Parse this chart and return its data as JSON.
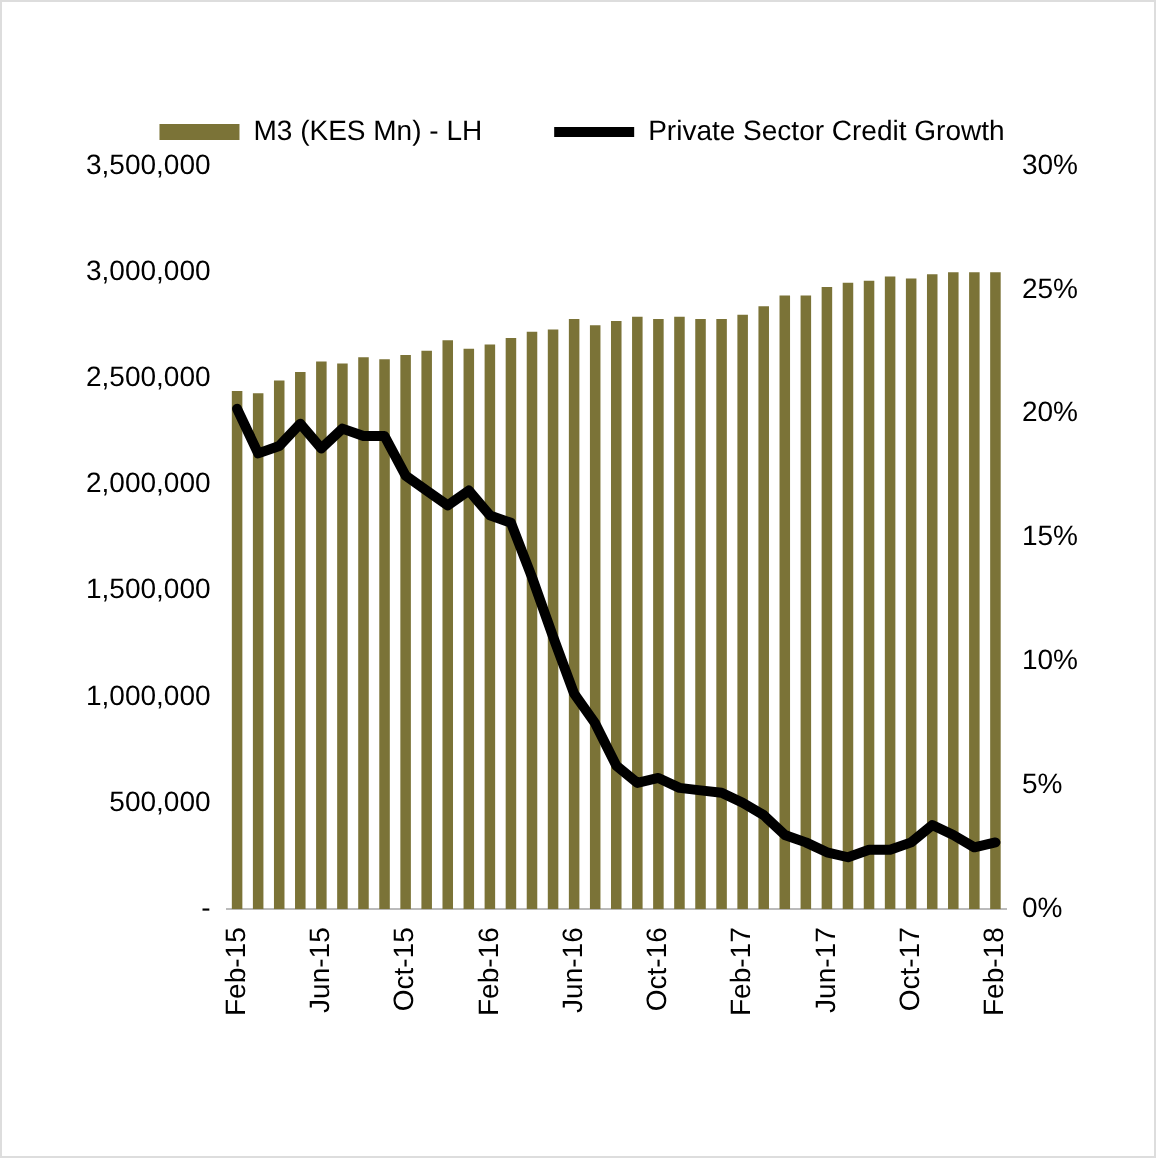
{
  "chart_data": {
    "type": "bar",
    "categories": [
      "Feb-15",
      null,
      null,
      null,
      "Jun-15",
      null,
      null,
      null,
      "Oct-15",
      null,
      null,
      null,
      "Feb-16",
      null,
      null,
      null,
      "Jun-16",
      null,
      null,
      null,
      "Oct-16",
      null,
      null,
      null,
      "Feb-17",
      null,
      null,
      null,
      "Jun-17",
      null,
      null,
      null,
      "Oct-17",
      null,
      null,
      null,
      "Feb-18"
    ],
    "series": [
      {
        "name": "M3 (KES Mn) - LH",
        "color": "#7b7337",
        "values": [
          2440000,
          2430000,
          2490000,
          2530000,
          2580000,
          2570000,
          2600000,
          2590000,
          2610000,
          2630000,
          2680000,
          2640000,
          2660000,
          2690000,
          2720000,
          2730000,
          2780000,
          2750000,
          2770000,
          2790000,
          2780000,
          2790000,
          2780000,
          2780000,
          2800000,
          2840000,
          2890000,
          2890000,
          2930000,
          2950000,
          2960000,
          2980000,
          2970000,
          2990000,
          3000000,
          3000000,
          3000000
        ]
      },
      {
        "name": "Private Sector Credit Growth",
        "type": "line",
        "axis": "y2",
        "color": "#000000",
        "values": [
          20.2,
          18.4,
          18.7,
          19.6,
          18.6,
          19.4,
          19.1,
          19.1,
          17.5,
          16.9,
          16.3,
          16.9,
          15.9,
          15.6,
          13.4,
          11.0,
          8.7,
          7.5,
          5.8,
          5.1,
          5.3,
          4.9,
          4.8,
          4.7,
          4.3,
          3.8,
          3.0,
          2.7,
          2.3,
          2.1,
          2.4,
          2.4,
          2.7,
          3.4,
          3.0,
          2.5,
          2.7
        ]
      }
    ],
    "ylim": [
      0,
      3500000
    ],
    "yticks": [
      {
        "value": 0,
        "label": "-"
      },
      {
        "value": 500000,
        "label": "500,000"
      },
      {
        "value": 1000000,
        "label": "1,000,000"
      },
      {
        "value": 1500000,
        "label": "1,500,000"
      },
      {
        "value": 2000000,
        "label": "2,000,000"
      },
      {
        "value": 2500000,
        "label": "2,500,000"
      },
      {
        "value": 3000000,
        "label": "3,000,000"
      },
      {
        "value": 3500000,
        "label": "3,500,000"
      }
    ],
    "y2lim": [
      0,
      30
    ],
    "y2ticks": [
      {
        "value": 0,
        "label": "0%"
      },
      {
        "value": 5,
        "label": "5%"
      },
      {
        "value": 10,
        "label": "10%"
      },
      {
        "value": 15,
        "label": "15%"
      },
      {
        "value": 20,
        "label": "20%"
      },
      {
        "value": 25,
        "label": "25%"
      },
      {
        "value": 30,
        "label": "30%"
      }
    ],
    "legend": "top",
    "grid": false,
    "marker": "none",
    "line_style": "solid"
  }
}
